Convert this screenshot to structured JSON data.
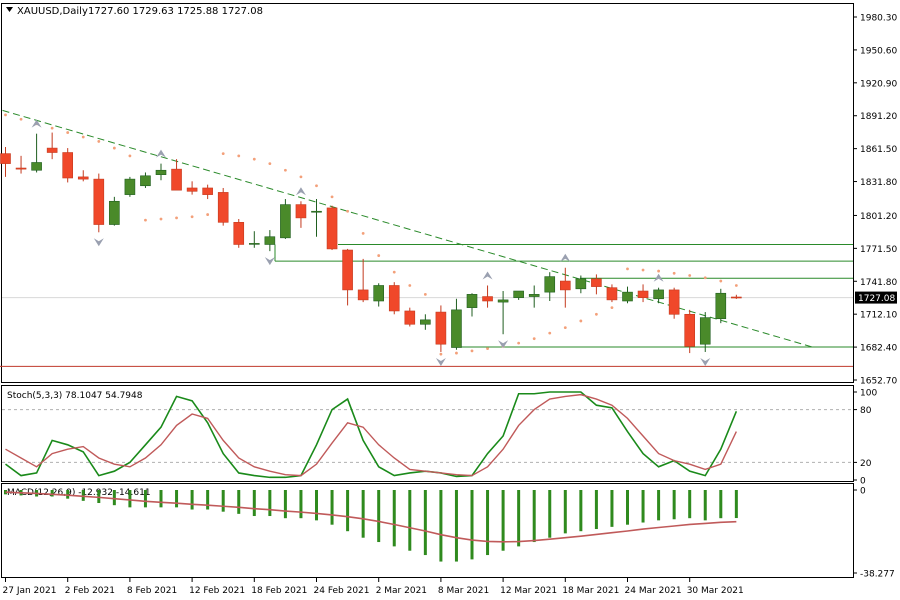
{
  "header": {
    "symbol": "XAUUSD,Daily",
    "ohlc": "1727.60 1729.63 1725.88 1727.08"
  },
  "colors": {
    "bull": "#4a8a2a",
    "bear": "#f0482a",
    "bull_border": "#1f5e1f",
    "bear_border": "#c43a1e",
    "sar": "#f3a07a",
    "trendline": "#2a8a2a",
    "hline": "#2a8a2a",
    "support_red": "#c0392b",
    "stoch_main": "#1a8a1a",
    "stoch_signal": "#c05a5a",
    "macd_hist": "#2f8a1e",
    "macd_signal": "#c05a5a",
    "fractal": "#9aa0b0",
    "frame": "#000000",
    "grid_dash": "#b0b0b0"
  },
  "chart_data": [
    {
      "type": "candlestick",
      "series_name": "XAUUSD,Daily",
      "y_ticks": [
        "1980.30",
        "1950.60",
        "1920.90",
        "1891.20",
        "1861.50",
        "1831.80",
        "1801.20",
        "1771.50",
        "1741.80",
        "1712.10",
        "1682.40",
        "1652.70"
      ],
      "ylim": [
        1652.7,
        1980.3
      ],
      "current_price_label": "1727.08",
      "x_labels": [
        "27 Jan 2021",
        "2 Feb 2021",
        "8 Feb 2021",
        "12 Feb 2021",
        "18 Feb 2021",
        "24 Feb 2021",
        "2 Mar 2021",
        "8 Mar 2021",
        "12 Mar 2021",
        "18 Mar 2021",
        "24 Mar 2021",
        "30 Mar 2021"
      ],
      "candles": [
        [
          1857,
          1863,
          1836,
          1848
        ],
        [
          1844,
          1855,
          1839,
          1843
        ],
        [
          1842,
          1875,
          1840,
          1849
        ],
        [
          1862,
          1876,
          1852,
          1858
        ],
        [
          1858,
          1862,
          1831,
          1835
        ],
        [
          1836,
          1842,
          1832,
          1834
        ],
        [
          1834,
          1839,
          1786,
          1793
        ],
        [
          1793,
          1818,
          1792,
          1814
        ],
        [
          1820,
          1836,
          1818,
          1834
        ],
        [
          1828,
          1840,
          1826,
          1837
        ],
        [
          1838,
          1848,
          1833,
          1842
        ],
        [
          1843,
          1852,
          1826,
          1824
        ],
        [
          1826,
          1832,
          1820,
          1823
        ],
        [
          1826,
          1829,
          1816,
          1820
        ],
        [
          1822,
          1826,
          1792,
          1795
        ],
        [
          1795,
          1798,
          1772,
          1775
        ],
        [
          1776,
          1787,
          1772,
          1776
        ],
        [
          1775,
          1788,
          1769,
          1782
        ],
        [
          1781,
          1816,
          1780,
          1811
        ],
        [
          1811,
          1814,
          1790,
          1799
        ],
        [
          1805,
          1816,
          1782,
          1805
        ],
        [
          1808,
          1810,
          1770,
          1771
        ],
        [
          1770,
          1771,
          1720,
          1734
        ],
        [
          1734,
          1762,
          1723,
          1725
        ],
        [
          1724,
          1740,
          1719,
          1738
        ],
        [
          1738,
          1741,
          1712,
          1715
        ],
        [
          1715,
          1718,
          1701,
          1703
        ],
        [
          1703,
          1712,
          1698,
          1707
        ],
        [
          1714,
          1720,
          1678,
          1685
        ],
        [
          1682,
          1726,
          1680,
          1716
        ],
        [
          1718,
          1731,
          1710,
          1730
        ],
        [
          1728,
          1738,
          1718,
          1724
        ],
        [
          1723,
          1733,
          1694,
          1725
        ],
        [
          1727,
          1733,
          1725,
          1733
        ],
        [
          1728,
          1738,
          1718,
          1730
        ],
        [
          1732,
          1750,
          1724,
          1746
        ],
        [
          1742,
          1754,
          1718,
          1734
        ],
        [
          1735,
          1747,
          1731,
          1744
        ],
        [
          1744,
          1748,
          1730,
          1737
        ],
        [
          1736,
          1739,
          1723,
          1725
        ],
        [
          1724,
          1737,
          1722,
          1732
        ],
        [
          1733,
          1739,
          1723,
          1727
        ],
        [
          1726,
          1736,
          1722,
          1734
        ],
        [
          1734,
          1736,
          1708,
          1712
        ],
        [
          1712,
          1716,
          1677,
          1683
        ],
        [
          1685,
          1714,
          1678,
          1709
        ],
        [
          1708,
          1735,
          1704,
          1731
        ],
        [
          1727.6,
          1729.63,
          1725.88,
          1727.08
        ]
      ],
      "parabolic_sar": [
        1892,
        1888,
        1884,
        1880,
        1876,
        1872,
        1868,
        1862,
        1855,
        1797,
        1798,
        1799,
        1800,
        1802,
        1857,
        1855,
        1852,
        1848,
        1842,
        1836,
        1828,
        1818,
        1805,
        1785,
        1765,
        1750,
        1738,
        1730,
        1676,
        1677,
        1679,
        1681,
        1683,
        1686,
        1690,
        1695,
        1700,
        1706,
        1712,
        1718,
        1753,
        1752,
        1751,
        1749,
        1747,
        1745,
        1742,
        1738
      ],
      "horizontal_levels": [
        1775,
        1760,
        1744.5,
        1682.5,
        1665
      ],
      "trendline": {
        "from": [
          0,
          1896
        ],
        "to": [
          52,
          1682
        ]
      }
    },
    {
      "type": "line",
      "title": "Stoch(5,3,3) 78.1047 54.7948",
      "ylim": [
        0,
        100
      ],
      "y_ticks": [
        "100",
        "80",
        "20",
        "0"
      ],
      "levels": [
        80,
        20
      ],
      "series": [
        {
          "name": "Stoch main",
          "values": [
            18,
            5,
            8,
            45,
            40,
            32,
            5,
            10,
            20,
            40,
            60,
            95,
            90,
            65,
            30,
            8,
            5,
            3,
            3,
            5,
            40,
            80,
            92,
            45,
            15,
            5,
            8,
            10,
            8,
            4,
            5,
            30,
            50,
            98,
            98,
            100,
            100,
            100,
            85,
            82,
            55,
            30,
            15,
            22,
            10,
            5,
            35,
            78
          ]
        },
        {
          "name": "Stoch signal",
          "values": [
            35,
            25,
            15,
            30,
            35,
            38,
            25,
            18,
            15,
            25,
            40,
            62,
            75,
            70,
            45,
            25,
            15,
            10,
            6,
            5,
            18,
            42,
            65,
            60,
            40,
            25,
            12,
            10,
            8,
            6,
            5,
            15,
            35,
            62,
            80,
            92,
            95,
            97,
            92,
            85,
            70,
            50,
            30,
            22,
            18,
            12,
            18,
            55
          ]
        }
      ]
    },
    {
      "type": "bar",
      "title": "MACD(12,26,9) -12.932 -14.611",
      "ylim": [
        -38.277,
        0
      ],
      "y_ticks": [
        "0",
        "-38.277"
      ],
      "series": [
        {
          "name": "MACD",
          "values": [
            -2,
            -2.5,
            -3,
            -3,
            -4,
            -5,
            -6,
            -7,
            -8,
            -8,
            -8,
            -8,
            -9,
            -9,
            -10,
            -11,
            -12,
            -12,
            -13,
            -13,
            -14,
            -16,
            -19,
            -22,
            -24,
            -26,
            -28,
            -30,
            -33,
            -33,
            -32,
            -30,
            -28,
            -26,
            -24,
            -22,
            -20,
            -19,
            -18,
            -17,
            -16,
            -15,
            -14,
            -13.5,
            -13,
            -14,
            -13,
            -12.932
          ]
        },
        {
          "name": "Signal",
          "values": [
            -1,
            -1.3,
            -1.6,
            -2,
            -2.4,
            -2.9,
            -3.4,
            -4,
            -4.6,
            -5.2,
            -5.7,
            -6.1,
            -6.6,
            -7,
            -7.5,
            -8,
            -8.6,
            -9.1,
            -9.7,
            -10.2,
            -10.8,
            -11.5,
            -12.3,
            -13.3,
            -14.5,
            -15.9,
            -17.4,
            -18.9,
            -20.6,
            -22,
            -23.1,
            -23.7,
            -23.9,
            -23.8,
            -23.3,
            -22.7,
            -22,
            -21.3,
            -20.5,
            -19.7,
            -18.9,
            -18,
            -17.3,
            -16.6,
            -15.9,
            -15.4,
            -14.9,
            -14.611
          ]
        }
      ]
    }
  ]
}
